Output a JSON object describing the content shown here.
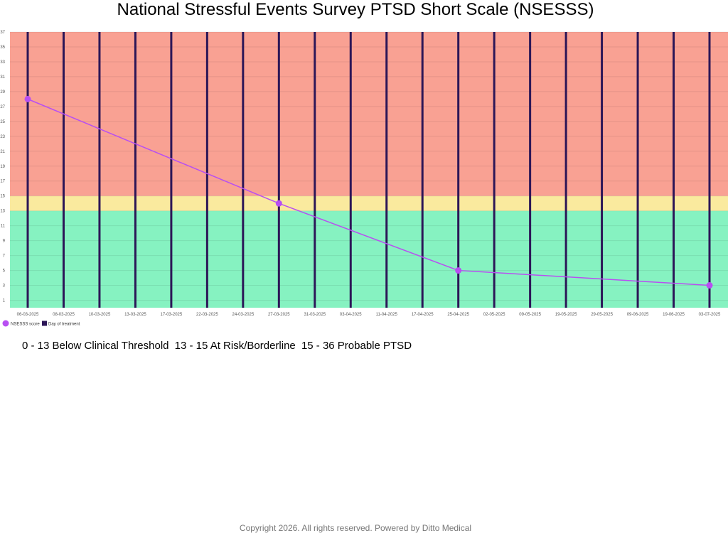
{
  "page": {
    "title": "National Stressful Events Survey PTSD Short Scale (NSESSS)",
    "footer": "Copyright  2026. All rights reserved. Powered by Ditto Medical"
  },
  "thresholds": [
    {
      "label": "0 - 13 Below Clinical Threshold",
      "from": 0,
      "to": 13,
      "color": "#86f2c1"
    },
    {
      "label": "13 - 15 At Risk/Borderline",
      "from": 13,
      "to": 15,
      "color": "#faea9e"
    },
    {
      "label": "15 - 36 Probable PTSD",
      "from": 15,
      "to": 37,
      "color": "#f9a193"
    }
  ],
  "chart_data": {
    "type": "line",
    "title": "National Stressful Events Survey PTSD Short Scale (NSESSS)",
    "xlabel": "",
    "ylabel": "",
    "ylim": [
      0,
      37
    ],
    "yticks": [
      1,
      3,
      5,
      7,
      9,
      11,
      13,
      15,
      17,
      19,
      21,
      23,
      25,
      27,
      29,
      31,
      33,
      35,
      37
    ],
    "categories": [
      "06-03-2025",
      "08-03-2025",
      "10-03-2025",
      "13-03-2025",
      "17-03-2025",
      "22-03-2025",
      "24-03-2025",
      "27-03-2025",
      "31-03-2025",
      "03-04-2025",
      "11-04-2025",
      "17-04-2025",
      "25-04-2025",
      "02-05-2025",
      "09-05-2025",
      "19-05-2025",
      "29-05-2025",
      "09-06-2025",
      "19-06-2025",
      "03-07-2025"
    ],
    "series": [
      {
        "name": "NSESSS score",
        "color": "#b84ff2",
        "points": [
          {
            "x": "06-03-2025",
            "y": 28
          },
          {
            "x": "27-03-2025",
            "y": 14
          },
          {
            "x": "25-04-2025",
            "y": 5
          },
          {
            "x": "03-07-2025",
            "y": 3
          }
        ]
      },
      {
        "name": "Day of treatment",
        "color": "#2c1657",
        "x": [
          "06-03-2025",
          "08-03-2025",
          "10-03-2025",
          "13-03-2025",
          "17-03-2025",
          "22-03-2025",
          "24-03-2025",
          "27-03-2025",
          "31-03-2025",
          "03-04-2025",
          "11-04-2025",
          "17-04-2025",
          "25-04-2025",
          "02-05-2025",
          "09-05-2025",
          "19-05-2025",
          "29-05-2025",
          "09-06-2025",
          "19-06-2025",
          "03-07-2025"
        ]
      }
    ],
    "legend": "bottom-left",
    "grid": true
  }
}
